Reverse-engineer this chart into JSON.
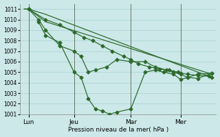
{
  "background_color": "#cce8e8",
  "grid_color": "#a8d0d0",
  "line_color": "#2d6a2d",
  "xlabel": "Pression niveau de la mer( hPa )",
  "ylim": [
    1001,
    1011.5
  ],
  "xlim": [
    -0.3,
    13.5
  ],
  "yticks": [
    1001,
    1002,
    1003,
    1004,
    1005,
    1006,
    1007,
    1008,
    1009,
    1010,
    1011
  ],
  "xtick_labels": [
    "Lun",
    "Jeu",
    "Mar",
    "Mer"
  ],
  "xtick_positions": [
    0.3,
    3.5,
    7.5,
    11.0
  ],
  "vline_positions": [
    0.3,
    3.5,
    7.5,
    11.0
  ],
  "series1_x": [
    0.0,
    0.3,
    1.5,
    13.2
  ],
  "series1_y": [
    1011.0,
    1011.0,
    1010.5,
    1004.5
  ],
  "series2_x": [
    0.0,
    0.3,
    1.5,
    13.2
  ],
  "series2_y": [
    1011.0,
    1011.0,
    1009.8,
    1004.8
  ],
  "series3_x": [
    0.3,
    1.5,
    2.5,
    3.5,
    4.2,
    4.8,
    5.5,
    6.2,
    7.0,
    7.5,
    8.0,
    8.8,
    9.5,
    10.2,
    10.8,
    11.0,
    11.5,
    12.2,
    13.0,
    13.2
  ],
  "series3_y": [
    1011.0,
    1010.0,
    1009.5,
    1008.8,
    1008.3,
    1008.0,
    1007.5,
    1007.0,
    1006.5,
    1006.2,
    1005.8,
    1005.5,
    1005.3,
    1005.2,
    1005.0,
    1004.9,
    1004.8,
    1004.7,
    1004.6,
    1004.5
  ],
  "series4_x": [
    0.3,
    1.0,
    1.5,
    2.5,
    3.5,
    4.0,
    4.5,
    5.0,
    5.8,
    6.5,
    7.5,
    8.5,
    9.2,
    10.0,
    10.5,
    11.0,
    11.5,
    12.2,
    13.2
  ],
  "series4_y": [
    1011.0,
    1010.0,
    1009.0,
    1007.5,
    1007.0,
    1006.5,
    1005.0,
    1005.2,
    1005.5,
    1006.2,
    1006.0,
    1006.0,
    1005.5,
    1005.2,
    1005.0,
    1004.8,
    1004.5,
    1004.4,
    1004.9
  ],
  "series5_x": [
    1.0,
    1.5,
    2.5,
    3.5,
    4.0,
    4.5,
    5.0,
    5.5,
    6.0,
    6.5,
    7.5,
    8.5,
    9.2,
    9.8,
    10.5,
    11.0,
    11.5,
    12.2,
    13.2
  ],
  "series5_y": [
    1009.8,
    1008.5,
    1007.8,
    1005.0,
    1004.5,
    1002.5,
    1001.5,
    1001.3,
    1001.0,
    1001.2,
    1001.5,
    1005.0,
    1005.2,
    1005.0,
    1004.8,
    1004.3,
    1004.5,
    1004.8,
    1004.9
  ]
}
